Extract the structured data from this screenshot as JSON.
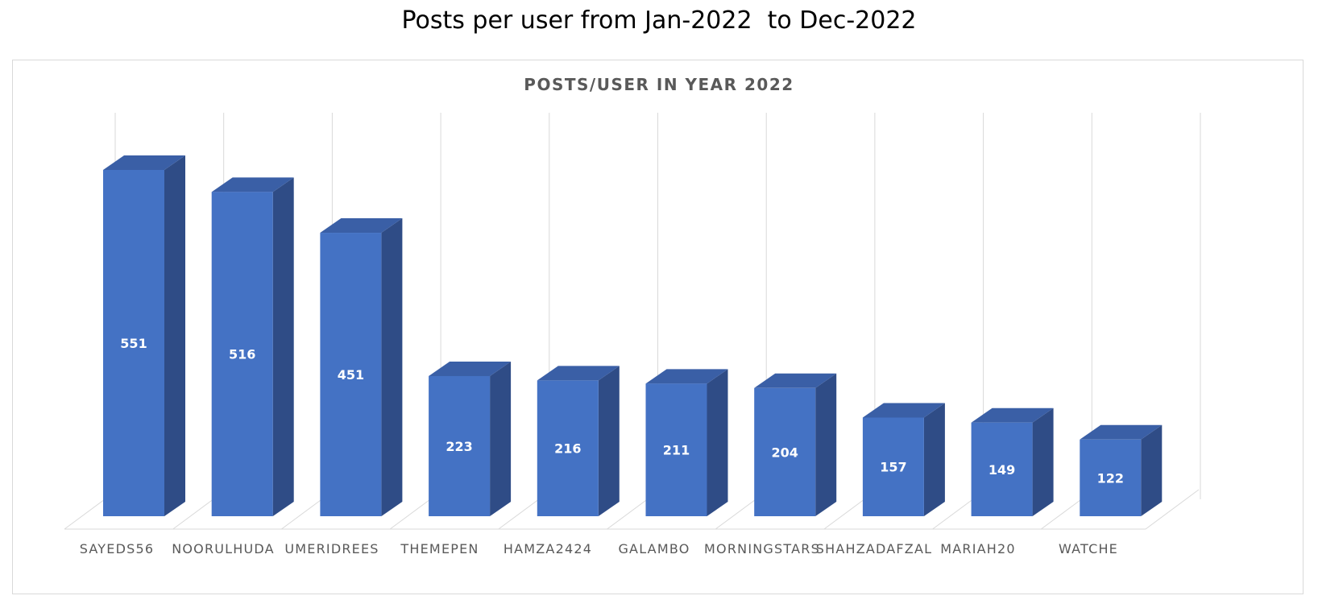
{
  "page_title": "Posts per user from Jan-2022  to Dec-2022",
  "chart_data": {
    "type": "bar",
    "title": "POSTS/USER IN YEAR 2022",
    "categories": [
      "SAYEDS56",
      "NOORULHUDA",
      "UMERIDREES",
      "THEMEPEN",
      "HAMZA2424",
      "GALAMBO",
      "MORNINGSTARS",
      "SHAHZADAFZAL",
      "MARIAH20",
      "WATCHE"
    ],
    "values": [
      551,
      516,
      451,
      223,
      216,
      211,
      204,
      157,
      149,
      122
    ],
    "xlabel": "",
    "ylabel": "",
    "ylim": [
      0,
      600
    ],
    "grid": true,
    "legend": "none",
    "three_d": true,
    "data_labels": true,
    "colors": {
      "bar_front": "#4472c4",
      "bar_side": "#2f4c86",
      "bar_top": "#3a5fa6",
      "label": "#ffffff",
      "category_label": "#595959",
      "title": "#595959",
      "grid": "#d9d9d9",
      "floor": "#d9d9d9"
    }
  }
}
